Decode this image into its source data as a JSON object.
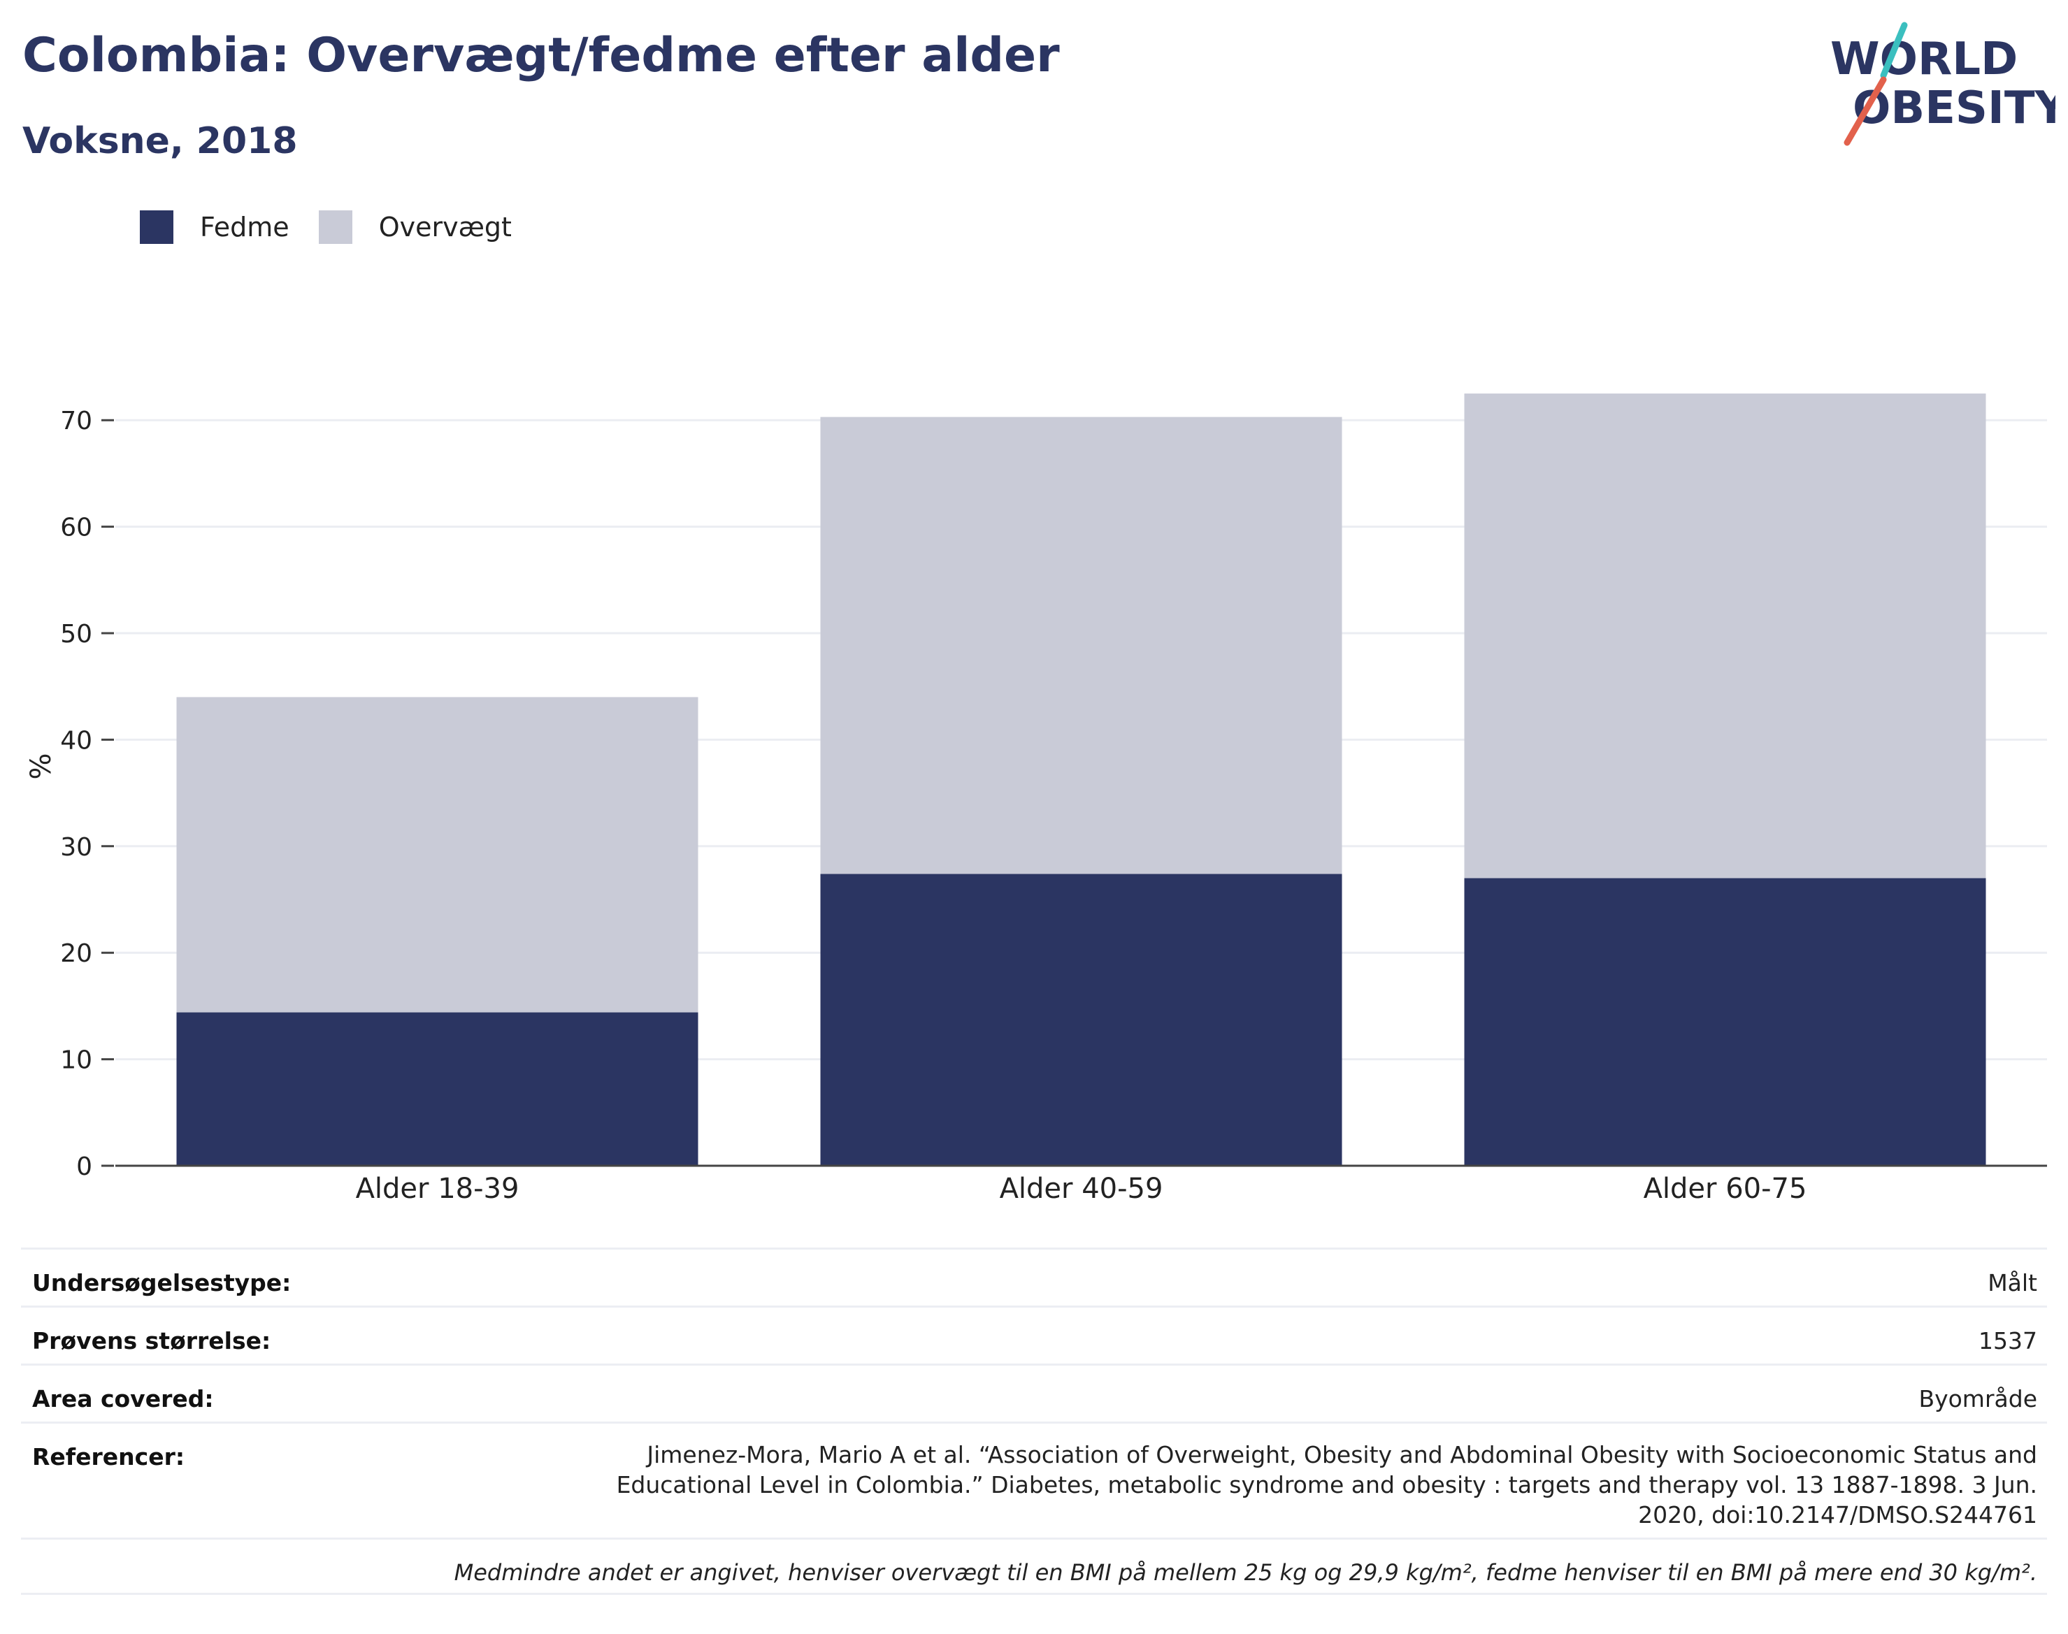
{
  "header": {
    "title": "Colombia: Overvægt/fedme efter alder",
    "subtitle": "Voksne, 2018"
  },
  "logo": {
    "line1": "WORLD",
    "line2": "OBESITY",
    "accent_colors": [
      "#3bbfbf",
      "#e2614c"
    ]
  },
  "colors": {
    "fedme": "#2b3562",
    "overvaegt": "#c9cbd7",
    "text": "#2b3562"
  },
  "chart_data": {
    "type": "bar",
    "stacked": true,
    "categories": [
      "Alder 18-39",
      "Alder 40-59",
      "Alder 60-75"
    ],
    "series": [
      {
        "name": "Fedme",
        "values": [
          14.4,
          27.4,
          27.0
        ]
      },
      {
        "name": "Overvægt",
        "values": [
          29.6,
          42.9,
          45.5
        ]
      }
    ],
    "ylabel": "%",
    "ylim": [
      0,
      75
    ],
    "yticks": [
      0,
      10,
      20,
      30,
      40,
      50,
      60,
      70
    ],
    "grid": true,
    "legend_position": "top-left"
  },
  "info": {
    "survey_type": {
      "label": "Undersøgelsestype:",
      "value": "Målt"
    },
    "sample_size": {
      "label": "Prøvens størrelse:",
      "value": "1537"
    },
    "area": {
      "label": "Area covered:",
      "value": "Byområde"
    },
    "references": {
      "label": "Referencer:",
      "value": "Jimenez-Mora, Mario A et al. “Association of Overweight, Obesity and Abdominal Obesity with Socioeconomic Status and Educational Level in Colombia.” Diabetes, metabolic syndrome and obesity : targets and therapy vol. 13 1887-1898. 3 Jun. 2020, doi:10.2147/DMSO.S244761"
    },
    "note": "Medmindre andet er angivet, henviser overvægt til en BMI på mellem 25 kg og 29,9 kg/m², fedme henviser til en BMI på mere end 30 kg/m²."
  }
}
